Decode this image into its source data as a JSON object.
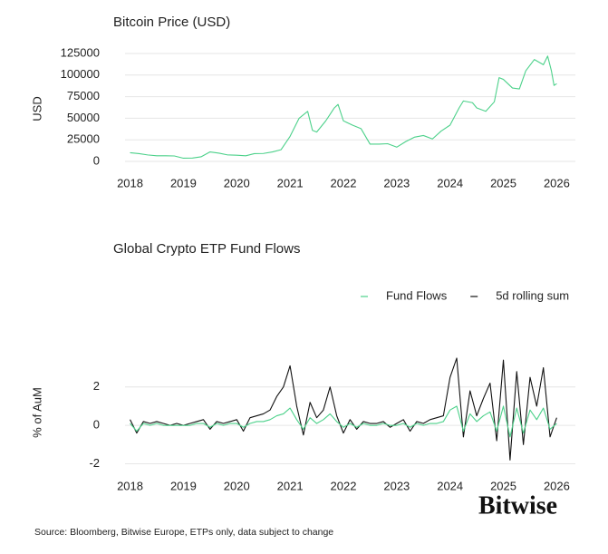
{
  "chart_data": [
    {
      "type": "line",
      "title": "Bitcoin Price (USD)",
      "ylabel": "USD",
      "x": [
        2018,
        2018.17,
        2018.33,
        2018.5,
        2018.67,
        2018.83,
        2019,
        2019.17,
        2019.33,
        2019.5,
        2019.67,
        2019.83,
        2020,
        2020.17,
        2020.33,
        2020.5,
        2020.67,
        2020.83,
        2021,
        2021.17,
        2021.33,
        2021.42,
        2021.5,
        2021.67,
        2021.83,
        2021.9,
        2022,
        2022.17,
        2022.33,
        2022.5,
        2022.67,
        2022.83,
        2023,
        2023.17,
        2023.33,
        2023.5,
        2023.67,
        2023.83,
        2024,
        2024.17,
        2024.25,
        2024.42,
        2024.5,
        2024.67,
        2024.83,
        2024.92,
        2025,
        2025.17,
        2025.3,
        2025.42,
        2025.58,
        2025.75,
        2025.83,
        2025.9,
        2025.95,
        2026
      ],
      "series": [
        {
          "color": "#4cd18a",
          "values": [
            10000,
            9000,
            7500,
            6500,
            6500,
            6300,
            3700,
            3900,
            5300,
            11000,
            9500,
            7500,
            7200,
            6500,
            9000,
            9200,
            11000,
            13500,
            29000,
            50000,
            58000,
            36000,
            34000,
            47000,
            62000,
            66000,
            47000,
            42000,
            38000,
            20000,
            20000,
            20500,
            16500,
            23000,
            28000,
            30000,
            26000,
            35000,
            42000,
            62000,
            70000,
            68000,
            62000,
            58000,
            69000,
            97000,
            95000,
            85000,
            84000,
            105000,
            118000,
            112000,
            122000,
            105000,
            88000,
            90000
          ]
        }
      ],
      "xlim": [
        2017.6,
        2026.35
      ],
      "xticks": [
        2018,
        2019,
        2020,
        2021,
        2022,
        2023,
        2024,
        2025,
        2026
      ],
      "ylim": [
        -12600,
        129200
      ],
      "yticks": [
        0,
        25000,
        50000,
        75000,
        100000,
        125000
      ],
      "grid": true
    },
    {
      "type": "line",
      "title": "Global Crypto ETP Fund Flows",
      "ylabel": "% of AuM",
      "legend": "upper right",
      "x": [
        2018,
        2018.125,
        2018.25,
        2018.375,
        2018.5,
        2018.625,
        2018.75,
        2018.875,
        2019,
        2019.125,
        2019.25,
        2019.375,
        2019.5,
        2019.625,
        2019.75,
        2019.875,
        2020,
        2020.125,
        2020.25,
        2020.375,
        2020.5,
        2020.625,
        2020.75,
        2020.875,
        2021,
        2021.125,
        2021.25,
        2021.375,
        2021.5,
        2021.625,
        2021.75,
        2021.875,
        2022,
        2022.125,
        2022.25,
        2022.375,
        2022.5,
        2022.625,
        2022.75,
        2022.875,
        2023,
        2023.125,
        2023.25,
        2023.375,
        2023.5,
        2023.625,
        2023.75,
        2023.875,
        2024,
        2024.125,
        2024.25,
        2024.375,
        2024.5,
        2024.625,
        2024.75,
        2024.875,
        2025,
        2025.125,
        2025.25,
        2025.375,
        2025.5,
        2025.625,
        2025.75,
        2025.875,
        2026
      ],
      "series": [
        {
          "name": "Fund Flows",
          "color": "#4cd18a",
          "values": [
            0.1,
            -0.3,
            0.1,
            0.0,
            0.1,
            0.0,
            0.0,
            0.0,
            0.0,
            0.0,
            0.1,
            0.1,
            -0.1,
            0.1,
            0.0,
            0.1,
            0.1,
            -0.1,
            0.1,
            0.2,
            0.2,
            0.3,
            0.5,
            0.6,
            0.9,
            0.3,
            -0.2,
            0.4,
            0.1,
            0.3,
            0.6,
            0.2,
            -0.1,
            0.1,
            -0.1,
            0.1,
            0.0,
            0.0,
            0.1,
            0.0,
            0.0,
            0.1,
            -0.1,
            0.1,
            0.0,
            0.1,
            0.1,
            0.2,
            0.8,
            1.0,
            -0.3,
            0.6,
            0.2,
            0.5,
            0.7,
            -0.3,
            1.0,
            -0.6,
            0.9,
            -0.4,
            0.8,
            0.3,
            0.9,
            -0.2,
            0.1
          ]
        },
        {
          "name": "5d rolling sum",
          "color": "#111111",
          "values": [
            0.3,
            -0.4,
            0.2,
            0.1,
            0.2,
            0.1,
            0.0,
            0.1,
            0.0,
            0.1,
            0.2,
            0.3,
            -0.2,
            0.2,
            0.1,
            0.2,
            0.3,
            -0.3,
            0.4,
            0.5,
            0.6,
            0.8,
            1.5,
            2.0,
            3.1,
            1.0,
            -0.5,
            1.2,
            0.4,
            0.8,
            2.0,
            0.5,
            -0.4,
            0.3,
            -0.2,
            0.2,
            0.1,
            0.1,
            0.2,
            -0.1,
            0.1,
            0.3,
            -0.3,
            0.2,
            0.1,
            0.3,
            0.4,
            0.5,
            2.5,
            3.5,
            -0.6,
            1.8,
            0.5,
            1.4,
            2.2,
            -0.8,
            3.4,
            -1.8,
            2.8,
            -1.0,
            2.5,
            1.0,
            3.0,
            -0.6,
            0.4
          ]
        }
      ],
      "xlim": [
        2017.6,
        2026.35
      ],
      "xticks": [
        2018,
        2019,
        2020,
        2021,
        2022,
        2023,
        2024,
        2025,
        2026
      ],
      "ylim": [
        -2.4,
        3.5
      ],
      "yticks": [
        -2,
        0,
        2
      ],
      "grid": true
    }
  ],
  "logo": "Bitwise",
  "footnote": "Source: Bloomberg, Bitwise Europe, ETPs only, data subject to change"
}
